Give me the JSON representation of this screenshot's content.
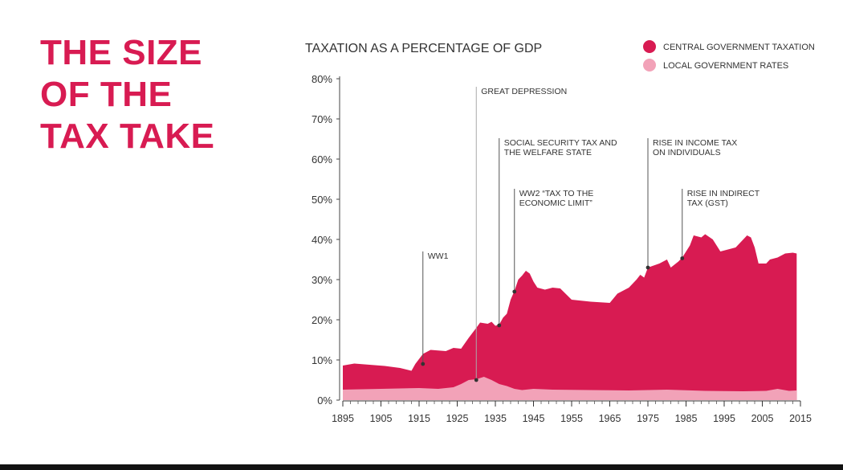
{
  "headline": {
    "lines": [
      "THE SIZE",
      "OF THE",
      "TAX TAKE"
    ]
  },
  "colors": {
    "central": "#d81b52",
    "local": "#f2a2b8",
    "headline": "#d81b52",
    "axis": "#333333"
  },
  "chart_data": {
    "type": "area",
    "title": "TAXATION AS A PERCENTAGE OF GDP",
    "stacked": true,
    "ylim": [
      0,
      80
    ],
    "xlim": [
      1895,
      2015
    ],
    "y_ticks": [
      {
        "value": 0,
        "label": "0%"
      },
      {
        "value": 10,
        "label": "10%"
      },
      {
        "value": 20,
        "label": "20%"
      },
      {
        "value": 30,
        "label": "30%"
      },
      {
        "value": 40,
        "label": "40%"
      },
      {
        "value": 50,
        "label": "50%"
      },
      {
        "value": 60,
        "label": "60%"
      },
      {
        "value": 70,
        "label": "70%"
      },
      {
        "value": 80,
        "label": "80%"
      }
    ],
    "x_ticks": [
      {
        "value": 1895,
        "label": "1895"
      },
      {
        "value": 1905,
        "label": "1905"
      },
      {
        "value": 1915,
        "label": "1915"
      },
      {
        "value": 1925,
        "label": "1925"
      },
      {
        "value": 1935,
        "label": "1935"
      },
      {
        "value": 1945,
        "label": "1945"
      },
      {
        "value": 1955,
        "label": "1955"
      },
      {
        "value": 1965,
        "label": "1965"
      },
      {
        "value": 1975,
        "label": "1975"
      },
      {
        "value": 1985,
        "label": "1985"
      },
      {
        "value": 1995,
        "label": "1995"
      },
      {
        "value": 2005,
        "label": "2005"
      },
      {
        "value": 2015,
        "label": "2015"
      }
    ],
    "legend_position": "top-right",
    "series": [
      {
        "name": "CENTRAL GOVERNMENT TAXATION",
        "color": "#d81b52",
        "role": "total",
        "points": [
          [
            1895,
            8.6
          ],
          [
            1898,
            9.1
          ],
          [
            1902,
            8.8
          ],
          [
            1906,
            8.5
          ],
          [
            1910,
            8.0
          ],
          [
            1913,
            7.3
          ],
          [
            1914,
            9.0
          ],
          [
            1916,
            11.5
          ],
          [
            1918,
            12.5
          ],
          [
            1922,
            12.2
          ],
          [
            1924,
            13.0
          ],
          [
            1926,
            12.8
          ],
          [
            1928,
            15.5
          ],
          [
            1930,
            18.0
          ],
          [
            1931,
            19.3
          ],
          [
            1933,
            19.0
          ],
          [
            1934,
            19.5
          ],
          [
            1935,
            18.5
          ],
          [
            1936,
            18.8
          ],
          [
            1937,
            20.5
          ],
          [
            1938,
            21.5
          ],
          [
            1939,
            25.0
          ],
          [
            1940,
            27.2
          ],
          [
            1941,
            30.0
          ],
          [
            1942,
            31.0
          ],
          [
            1943,
            32.2
          ],
          [
            1944,
            31.5
          ],
          [
            1945,
            29.5
          ],
          [
            1946,
            28.0
          ],
          [
            1948,
            27.5
          ],
          [
            1950,
            28.0
          ],
          [
            1952,
            27.8
          ],
          [
            1955,
            25.0
          ],
          [
            1960,
            24.5
          ],
          [
            1965,
            24.2
          ],
          [
            1967,
            26.5
          ],
          [
            1970,
            28.0
          ],
          [
            1972,
            30.0
          ],
          [
            1973,
            31.2
          ],
          [
            1974,
            30.5
          ],
          [
            1975,
            33.0
          ],
          [
            1978,
            34.0
          ],
          [
            1980,
            35.0
          ],
          [
            1981,
            33.0
          ],
          [
            1983,
            34.5
          ],
          [
            1984,
            35.5
          ],
          [
            1986,
            38.5
          ],
          [
            1987,
            41.0
          ],
          [
            1989,
            40.5
          ],
          [
            1990,
            41.3
          ],
          [
            1992,
            40.0
          ],
          [
            1994,
            37.0
          ],
          [
            1996,
            37.5
          ],
          [
            1998,
            38.0
          ],
          [
            2000,
            40.0
          ],
          [
            2001,
            41.0
          ],
          [
            2002,
            40.5
          ],
          [
            2003,
            38.0
          ],
          [
            2004,
            34.0
          ],
          [
            2006,
            34.0
          ],
          [
            2007,
            35.0
          ],
          [
            2009,
            35.5
          ],
          [
            2011,
            36.5
          ],
          [
            2013,
            36.7
          ],
          [
            2014,
            36.5
          ]
        ]
      },
      {
        "name": "LOCAL GOVERNMENT RATES",
        "color": "#f2a2b8",
        "role": "component",
        "points": [
          [
            1895,
            2.6
          ],
          [
            1905,
            2.8
          ],
          [
            1915,
            3.0
          ],
          [
            1920,
            2.8
          ],
          [
            1924,
            3.2
          ],
          [
            1926,
            4.0
          ],
          [
            1928,
            5.0
          ],
          [
            1930,
            5.2
          ],
          [
            1932,
            5.8
          ],
          [
            1934,
            5.0
          ],
          [
            1936,
            4.0
          ],
          [
            1938,
            3.5
          ],
          [
            1940,
            2.8
          ],
          [
            1942,
            2.5
          ],
          [
            1945,
            2.8
          ],
          [
            1950,
            2.6
          ],
          [
            1960,
            2.5
          ],
          [
            1970,
            2.4
          ],
          [
            1980,
            2.6
          ],
          [
            1990,
            2.3
          ],
          [
            2000,
            2.2
          ],
          [
            2006,
            2.3
          ],
          [
            2009,
            2.8
          ],
          [
            2012,
            2.3
          ],
          [
            2014,
            2.4
          ]
        ]
      }
    ],
    "annotations": [
      {
        "lines": [
          "WW1"
        ],
        "x": 1916,
        "y": 9.0
      },
      {
        "lines": [
          "GREAT DEPRESSION"
        ],
        "x": 1930,
        "y": 5.0
      },
      {
        "lines": [
          "SOCIAL SECURITY TAX AND",
          "THE WELFARE STATE"
        ],
        "x": 1936,
        "y": 18.6
      },
      {
        "lines": [
          "WW2 “TAX TO THE",
          "ECONOMIC LIMIT”"
        ],
        "x": 1940,
        "y": 27.0
      },
      {
        "lines": [
          "RISE IN INCOME TAX",
          "ON INDIVIDUALS"
        ],
        "x": 1975,
        "y": 33.0
      },
      {
        "lines": [
          "RISE IN INDIRECT",
          "TAX (GST)"
        ],
        "x": 1984,
        "y": 35.3
      }
    ]
  }
}
